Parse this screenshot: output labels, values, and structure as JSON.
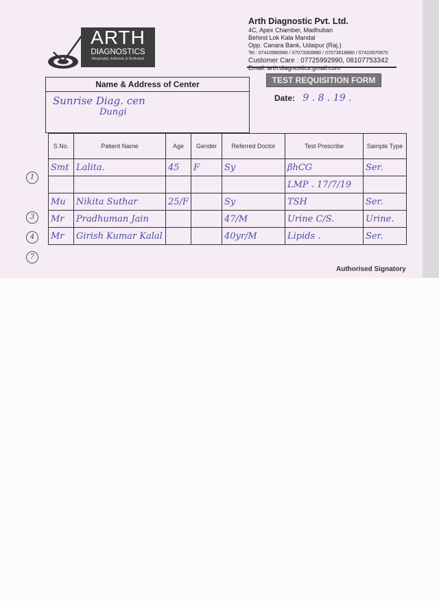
{
  "logo": {
    "brand": "ARTH",
    "sub": "DIAGNOSTICS",
    "tagline": "Meaningful, Authentic & Dedicated"
  },
  "company": {
    "name": "Arth Diagnostic Pvt. Ltd.",
    "address": [
      "4C, Apex Chamber, Madhuban",
      "Behind Lok Kala Mandal",
      "Opp. Canara Bank, Udaipur (Raj.)"
    ],
    "tel": "Tel : 07410980980 / 07073308880 / 07073818880 / 07410970970",
    "customer_care": "Customer Care : 07725992990, 08107753342",
    "email": "Email: arth.diagnostics.gmail.com"
  },
  "form_title": "TEST REQUISITION FORM",
  "date": {
    "label": "Date:",
    "value": "9 . 8 . 19 ."
  },
  "center": {
    "label": "Name & Address of Center",
    "line1": "Sunrise Diag. cen",
    "line2": "Dungi"
  },
  "table": {
    "headers": [
      "S.No.",
      "Patient Name",
      "Age",
      "Gender",
      "Referred Doctor",
      "Test Prescribe",
      "Sample Type"
    ],
    "rows": [
      {
        "mark": "1",
        "cells": [
          "Smt",
          "Lalita.",
          "45",
          "F",
          "Sy",
          "βhCG",
          "Ser."
        ]
      },
      {
        "mark": "",
        "cells": [
          "",
          "",
          "",
          "",
          "",
          "LMP . 17/7/19",
          ""
        ]
      },
      {
        "mark": "3",
        "cells": [
          "Mu",
          "Nikita Suthar",
          "25/F",
          "",
          "Sy",
          "TSH",
          "Ser."
        ]
      },
      {
        "mark": "4",
        "cells": [
          "Mr",
          "Pradhuman Jain",
          "",
          "",
          "47/M",
          "Urine C/S.",
          "Urine."
        ]
      },
      {
        "mark": "7",
        "cells": [
          "Mr",
          "Girish Kumar Kalal",
          "",
          "",
          "40yr/M",
          "Lipids .",
          "Ser."
        ]
      }
    ]
  },
  "signatory": "Authorised Signatory"
}
